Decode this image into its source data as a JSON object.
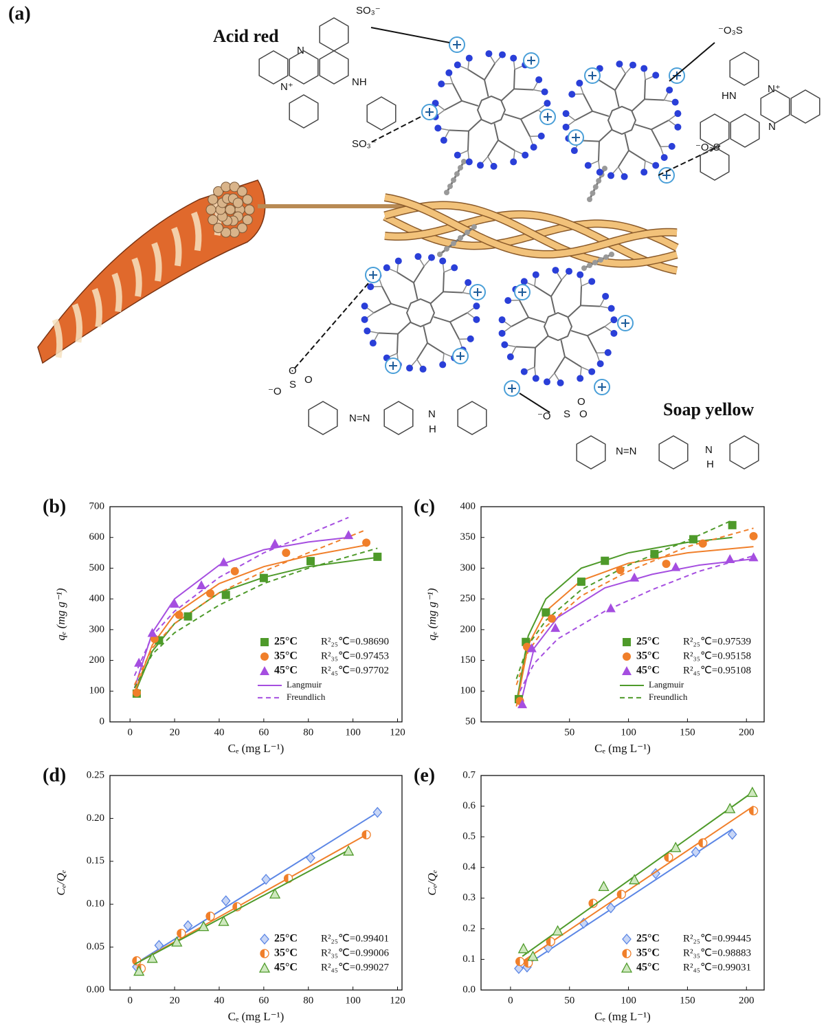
{
  "illustration": {
    "label": "(a)",
    "acid_red": {
      "title": "Acid red",
      "atoms": [
        "SO₃⁻",
        "N",
        "N⁺",
        "NH",
        "SO₃⁻"
      ]
    },
    "acid_red_right": {
      "atoms": [
        "⁻O₃S",
        "HN",
        "N⁺",
        "N",
        "⁻O₃S"
      ]
    },
    "soap_yellow": {
      "title": "Soap yellow",
      "atoms": [
        "O",
        "S",
        "O",
        "⁻O",
        "N=N",
        "N",
        "H"
      ]
    },
    "soap_yellow_left": {
      "atoms": [
        "O",
        "S",
        "O",
        "⁻O",
        "N=N",
        "N",
        "H"
      ]
    }
  },
  "chart_data": [
    {
      "type": "scatter",
      "panel": "(b)",
      "x_label": "Cₑ (mg L⁻¹)",
      "y_label": "qₑ (mg g⁻¹)",
      "xlim": [
        -9,
        122
      ],
      "xticks": [
        0,
        20,
        40,
        60,
        80,
        100,
        120
      ],
      "ylim": [
        0,
        700
      ],
      "yticks": [
        0,
        100,
        200,
        300,
        400,
        500,
        600,
        700
      ],
      "legend": "lower right",
      "series": [
        {
          "name": "25°C",
          "marker": "square",
          "color": "#4e9a2a",
          "r2": "R²₂₅℃=0.98690",
          "x": [
            3,
            13,
            26,
            43,
            60,
            81,
            111
          ],
          "values": [
            92,
            265,
            343,
            413,
            468,
            523,
            537
          ]
        },
        {
          "name": "35°C",
          "marker": "circle",
          "color": "#f07f2a",
          "r2": "R²₃₅℃=0.97453",
          "x": [
            3,
            11,
            22,
            36,
            47,
            70,
            106
          ],
          "values": [
            95,
            270,
            348,
            418,
            490,
            550,
            583
          ]
        },
        {
          "name": "45°C",
          "marker": "triangle",
          "color": "#a54ee0",
          "r2": "R²₄₅℃=0.97702",
          "x": [
            4,
            10,
            20,
            32,
            42,
            65,
            98
          ],
          "values": [
            193,
            290,
            385,
            445,
            520,
            580,
            608
          ]
        }
      ],
      "fits": [
        {
          "name": "Langmuir",
          "dashed": false,
          "color": "#a54ee0",
          "curves": [
            {
              "color": "#4e9a2a",
              "x": [
                2,
                10,
                20,
                40,
                60,
                80,
                111
              ],
              "values": [
                90,
                230,
                320,
                420,
                470,
                505,
                535
              ]
            },
            {
              "color": "#f07f2a",
              "x": [
                2,
                10,
                20,
                40,
                60,
                80,
                106
              ],
              "values": [
                95,
                250,
                350,
                450,
                505,
                540,
                575
              ]
            },
            {
              "color": "#a54ee0",
              "x": [
                2,
                10,
                20,
                40,
                60,
                80,
                98
              ],
              "values": [
                110,
                290,
                400,
                510,
                560,
                585,
                600
              ]
            }
          ]
        },
        {
          "name": "Freundlich",
          "dashed": true,
          "color": "#a54ee0",
          "curves": [
            {
              "color": "#4e9a2a",
              "x": [
                2,
                10,
                20,
                40,
                60,
                80,
                111
              ],
              "values": [
                110,
                220,
                290,
                380,
                450,
                500,
                565
              ]
            },
            {
              "color": "#f07f2a",
              "x": [
                2,
                10,
                20,
                40,
                60,
                80,
                106
              ],
              "values": [
                120,
                240,
                320,
                420,
                490,
                550,
                625
              ]
            },
            {
              "color": "#a54ee0",
              "x": [
                2,
                10,
                20,
                40,
                60,
                80,
                98
              ],
              "values": [
                150,
                280,
                360,
                470,
                550,
                610,
                665
              ]
            }
          ]
        }
      ]
    },
    {
      "type": "scatter",
      "panel": "(c)",
      "x_label": "Cₑ (mg L⁻¹)",
      "y_label": "qₑ (mg g⁻¹)",
      "xlim": [
        -25,
        215
      ],
      "xticks": [
        50,
        100,
        150,
        200
      ],
      "ylim": [
        50,
        400
      ],
      "yticks": [
        50,
        100,
        150,
        200,
        250,
        300,
        350,
        400
      ],
      "legend": "lower right",
      "series": [
        {
          "name": "25°C",
          "marker": "square",
          "color": "#4e9a2a",
          "r2": "R²₂₅℃=0.97539",
          "x": [
            7,
            13,
            30,
            60,
            80,
            122,
            155,
            188
          ],
          "values": [
            87,
            180,
            228,
            278,
            312,
            323,
            347,
            370
          ]
        },
        {
          "name": "35°C",
          "marker": "circle",
          "color": "#f07f2a",
          "r2": "R²₃₅℃=0.95158",
          "x": [
            8,
            14,
            35,
            93,
            132,
            163,
            206
          ],
          "values": [
            84,
            172,
            218,
            297,
            307,
            340,
            352
          ]
        },
        {
          "name": "45°C",
          "marker": "triangle",
          "color": "#a54ee0",
          "r2": "R²₄₅℃=0.95108",
          "x": [
            10,
            18,
            38,
            85,
            105,
            140,
            186,
            206
          ],
          "values": [
            79,
            170,
            203,
            235,
            285,
            302,
            315,
            318
          ]
        }
      ],
      "fits": [
        {
          "name": "Langmuir",
          "dashed": false,
          "color": "#4e9a2a",
          "curves": [
            {
              "color": "#4e9a2a",
              "x": [
                5,
                15,
                30,
                60,
                100,
                150,
                188
              ],
              "values": [
                80,
                190,
                250,
                300,
                325,
                342,
                350
              ]
            },
            {
              "color": "#f07f2a",
              "x": [
                5,
                15,
                30,
                60,
                100,
                150,
                206
              ],
              "values": [
                75,
                175,
                230,
                280,
                308,
                325,
                335
              ]
            },
            {
              "color": "#a54ee0",
              "x": [
                8,
                20,
                40,
                80,
                120,
                160,
                206
              ],
              "values": [
                75,
                170,
                220,
                268,
                290,
                305,
                315
              ]
            }
          ]
        },
        {
          "name": "Freundlich",
          "dashed": true,
          "color": "#4e9a2a",
          "curves": [
            {
              "color": "#4e9a2a",
              "x": [
                5,
                15,
                30,
                60,
                100,
                150,
                188
              ],
              "values": [
                120,
                175,
                215,
                265,
                305,
                345,
                378
              ]
            },
            {
              "color": "#f07f2a",
              "x": [
                5,
                15,
                30,
                60,
                100,
                150,
                206
              ],
              "values": [
                110,
                165,
                205,
                255,
                295,
                335,
                365
              ]
            },
            {
              "color": "#a54ee0",
              "x": [
                8,
                20,
                40,
                80,
                120,
                160,
                206
              ],
              "values": [
                100,
                145,
                185,
                230,
                265,
                295,
                320
              ]
            }
          ]
        }
      ]
    },
    {
      "type": "scatter",
      "panel": "(d)",
      "x_label": "Cₑ (mg L⁻¹)",
      "y_label": "Cₑ/Qₑ",
      "xlim": [
        -9,
        122
      ],
      "xticks": [
        0,
        20,
        40,
        60,
        80,
        100,
        120
      ],
      "ylim": [
        0,
        0.25
      ],
      "yticks": [
        {
          "value": 0,
          "label": "0.00"
        },
        0.05,
        {
          "value": 0.1,
          "label": "0.10"
        },
        0.15,
        {
          "value": 0.2,
          "label": "0.20"
        },
        0.25
      ],
      "legend": "lower right",
      "series": [
        {
          "name": "25°C",
          "marker": "diamond",
          "color": "#5b86e5",
          "r2": "R²₂₅℃=0.99401",
          "x": [
            3,
            13,
            26,
            43,
            61,
            81,
            111
          ],
          "values": [
            0.027,
            0.052,
            0.075,
            0.104,
            0.129,
            0.154,
            0.207
          ],
          "fit": {
            "x": [
              2,
              111
            ],
            "values": [
              0.03,
              0.207
            ]
          }
        },
        {
          "name": "35°C",
          "marker": "half-circle",
          "color": "#f07f2a",
          "r2": "R²₃₅℃=0.99006",
          "x": [
            3,
            5,
            23,
            36,
            48,
            71,
            106
          ],
          "values": [
            0.034,
            0.025,
            0.066,
            0.086,
            0.097,
            0.13,
            0.181
          ],
          "fit": {
            "x": [
              2,
              106
            ],
            "values": [
              0.03,
              0.181
            ]
          }
        },
        {
          "name": "45°C",
          "marker": "open-triangle",
          "color": "#4e9a2a",
          "r2": "R²₄₅℃=0.99027",
          "x": [
            4,
            10,
            21,
            33,
            42,
            65,
            98
          ],
          "values": [
            0.022,
            0.037,
            0.056,
            0.074,
            0.08,
            0.112,
            0.162
          ],
          "fit": {
            "x": [
              2,
              98
            ],
            "values": [
              0.03,
              0.163
            ]
          }
        }
      ]
    },
    {
      "type": "scatter",
      "panel": "(e)",
      "x_label": "Cₑ (mg L⁻¹)",
      "y_label": "Cₑ/Qₑ",
      "xlim": [
        -25,
        215
      ],
      "xticks": [
        0,
        50,
        100,
        150,
        200
      ],
      "ylim": [
        0,
        0.7
      ],
      "yticks": [
        {
          "value": 0,
          "label": "0.0"
        },
        0.1,
        0.2,
        0.3,
        0.4,
        0.5,
        0.6,
        0.7
      ],
      "legend": "lower right",
      "series": [
        {
          "name": "25°C",
          "marker": "diamond",
          "color": "#5b86e5",
          "r2": "R²₂₅℃=0.99445",
          "x": [
            7,
            14,
            32,
            62,
            85,
            123,
            157,
            188
          ],
          "values": [
            0.07,
            0.075,
            0.138,
            0.218,
            0.268,
            0.38,
            0.45,
            0.508
          ],
          "fit": {
            "x": [
              7,
              188
            ],
            "values": [
              0.065,
              0.525
            ]
          }
        },
        {
          "name": "35°C",
          "marker": "half-circle",
          "color": "#f07f2a",
          "r2": "R²₃₅℃=0.98883",
          "x": [
            8,
            15,
            34,
            70,
            94,
            134,
            163,
            206
          ],
          "values": [
            0.093,
            0.088,
            0.158,
            0.283,
            0.312,
            0.433,
            0.48,
            0.585
          ],
          "fit": {
            "x": [
              7,
              206
            ],
            "values": [
              0.085,
              0.6
            ]
          }
        },
        {
          "name": "45°C",
          "marker": "open-triangle",
          "color": "#4e9a2a",
          "r2": "R²₄₅℃=0.99031",
          "x": [
            11,
            19,
            40,
            79,
            105,
            140,
            186,
            205
          ],
          "values": [
            0.135,
            0.11,
            0.193,
            0.338,
            0.36,
            0.465,
            0.592,
            0.645
          ],
          "fit": {
            "x": [
              10,
              205
            ],
            "values": [
              0.11,
              0.645
            ]
          }
        }
      ]
    }
  ]
}
